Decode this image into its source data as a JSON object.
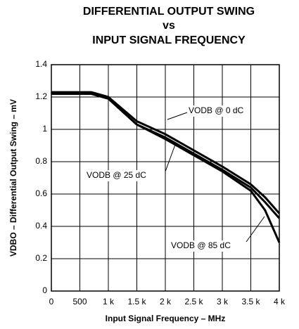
{
  "chart_data": {
    "type": "line",
    "title": [
      "DIFFERENTIAL OUTPUT SWING",
      "vs",
      "INPUT SIGNAL FREQUENCY"
    ],
    "x_label": "Input Signal Frequency – MHz",
    "y_label": "VDBO – Differential Output Swing – mV",
    "x": [
      0,
      500,
      700,
      1000,
      1500,
      2000,
      2500,
      3000,
      3500,
      3750,
      4000
    ],
    "series": [
      {
        "name": "VODB @ 0 dC",
        "color": "#000000",
        "values": [
          1.23,
          1.23,
          1.23,
          1.2,
          1.05,
          0.97,
          0.87,
          0.77,
          0.66,
          0.58,
          0.48
        ]
      },
      {
        "name": "VODB @ 25 dC",
        "color": "#000000",
        "values": [
          1.22,
          1.22,
          1.22,
          1.19,
          1.03,
          0.95,
          0.85,
          0.75,
          0.64,
          0.55,
          0.45
        ]
      },
      {
        "name": "VODB @ 85 dC",
        "color": "#000000",
        "values": [
          1.22,
          1.22,
          1.22,
          1.19,
          1.03,
          0.94,
          0.84,
          0.74,
          0.62,
          0.5,
          0.3
        ]
      }
    ],
    "xlim": [
      0,
      4000
    ],
    "xticks": [
      0,
      500,
      {
        "value": 1000,
        "label": "1 k"
      },
      {
        "value": 1500,
        "label": "1.5 k"
      },
      {
        "value": 2000,
        "label": "2 k"
      },
      {
        "value": 2500,
        "label": "2.5 k"
      },
      {
        "value": 3000,
        "label": "3 k"
      },
      {
        "value": 3500,
        "label": "3.5 k"
      },
      {
        "value": 4000,
        "label": "4 k"
      }
    ],
    "ylim": [
      0,
      1.4
    ],
    "yticks": [
      0,
      0.2,
      0.4,
      0.6,
      0.8,
      1,
      1.2,
      1.4
    ],
    "grid": true
  }
}
